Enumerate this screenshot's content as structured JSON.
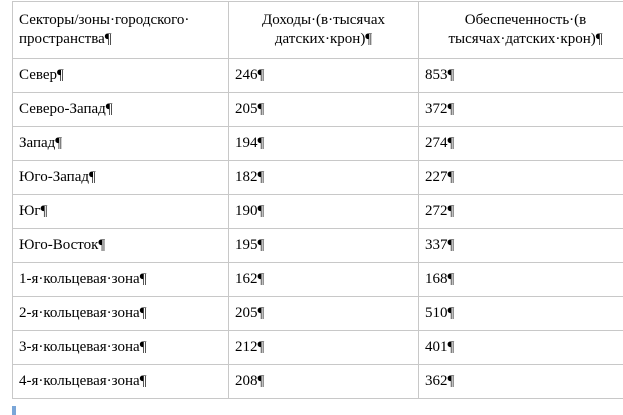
{
  "table": {
    "headers": [
      "Секторы/зоны·городского·\nпространства¶",
      "Доходы·(в·тысячах\nдатских·крон)¶",
      "Обеспеченность·(в\nтысячах·датских·крон)¶"
    ],
    "rows": [
      [
        "Север¶",
        "246¶",
        "853¶"
      ],
      [
        "Северо-Запад¶",
        "205¶",
        "372¶"
      ],
      [
        "Запад¶",
        "194¶",
        "274¶"
      ],
      [
        "Юго-Запад¶",
        "182¶",
        "227¶"
      ],
      [
        "Юг¶",
        "190¶",
        "272¶"
      ],
      [
        "Юго-Восток¶",
        "195¶",
        "337¶"
      ],
      [
        "1-я·кольцевая·зона¶",
        "162¶",
        "168¶"
      ],
      [
        "2-я·кольцевая·зона¶",
        "205¶",
        "510¶"
      ],
      [
        "3-я·кольцевая·зона¶",
        "212¶",
        "401¶"
      ],
      [
        "4-я·кольцевая·зона¶",
        "208¶",
        "362¶"
      ]
    ]
  }
}
